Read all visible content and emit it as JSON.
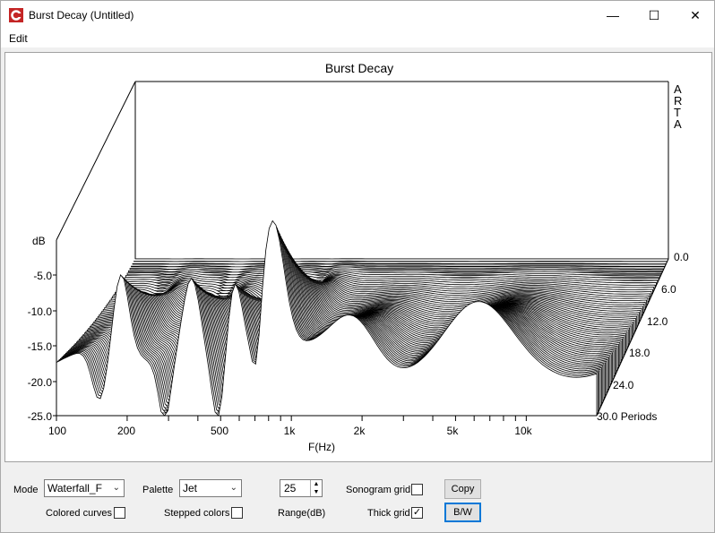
{
  "window": {
    "title": "Burst Decay  (Untitled)",
    "minimize": "—",
    "maximize": "☐",
    "close": "✕"
  },
  "menu": {
    "edit": "Edit"
  },
  "plot": {
    "title": "Burst Decay",
    "watermark": [
      "A",
      "R",
      "T",
      "A"
    ],
    "db_unit": "dB",
    "y_ticks": [
      "-5.0",
      "-10.0",
      "-15.0",
      "-20.0",
      "-25.0"
    ],
    "x_ticks": [
      "100",
      "200",
      "500",
      "1k",
      "2k",
      "5k",
      "10k"
    ],
    "x_label": "F(Hz)",
    "z_ticks": [
      "0.0",
      "6.0",
      "12.0",
      "18.0",
      "24.0",
      "30.0 Periods"
    ]
  },
  "controls": {
    "mode_label": "Mode",
    "mode_value": "Waterfall_F",
    "palette_label": "Palette",
    "palette_value": "Jet",
    "range_value": "25",
    "range_label": "Range(dB)",
    "sonogram_label": "Sonogram grid",
    "sonogram_checked": false,
    "thick_label": "Thick grid",
    "thick_checked": true,
    "colored_label": "Colored curves",
    "colored_checked": false,
    "stepped_label": "Stepped colors",
    "stepped_checked": false,
    "copy_label": "Copy",
    "bw_label": "B/W"
  }
}
